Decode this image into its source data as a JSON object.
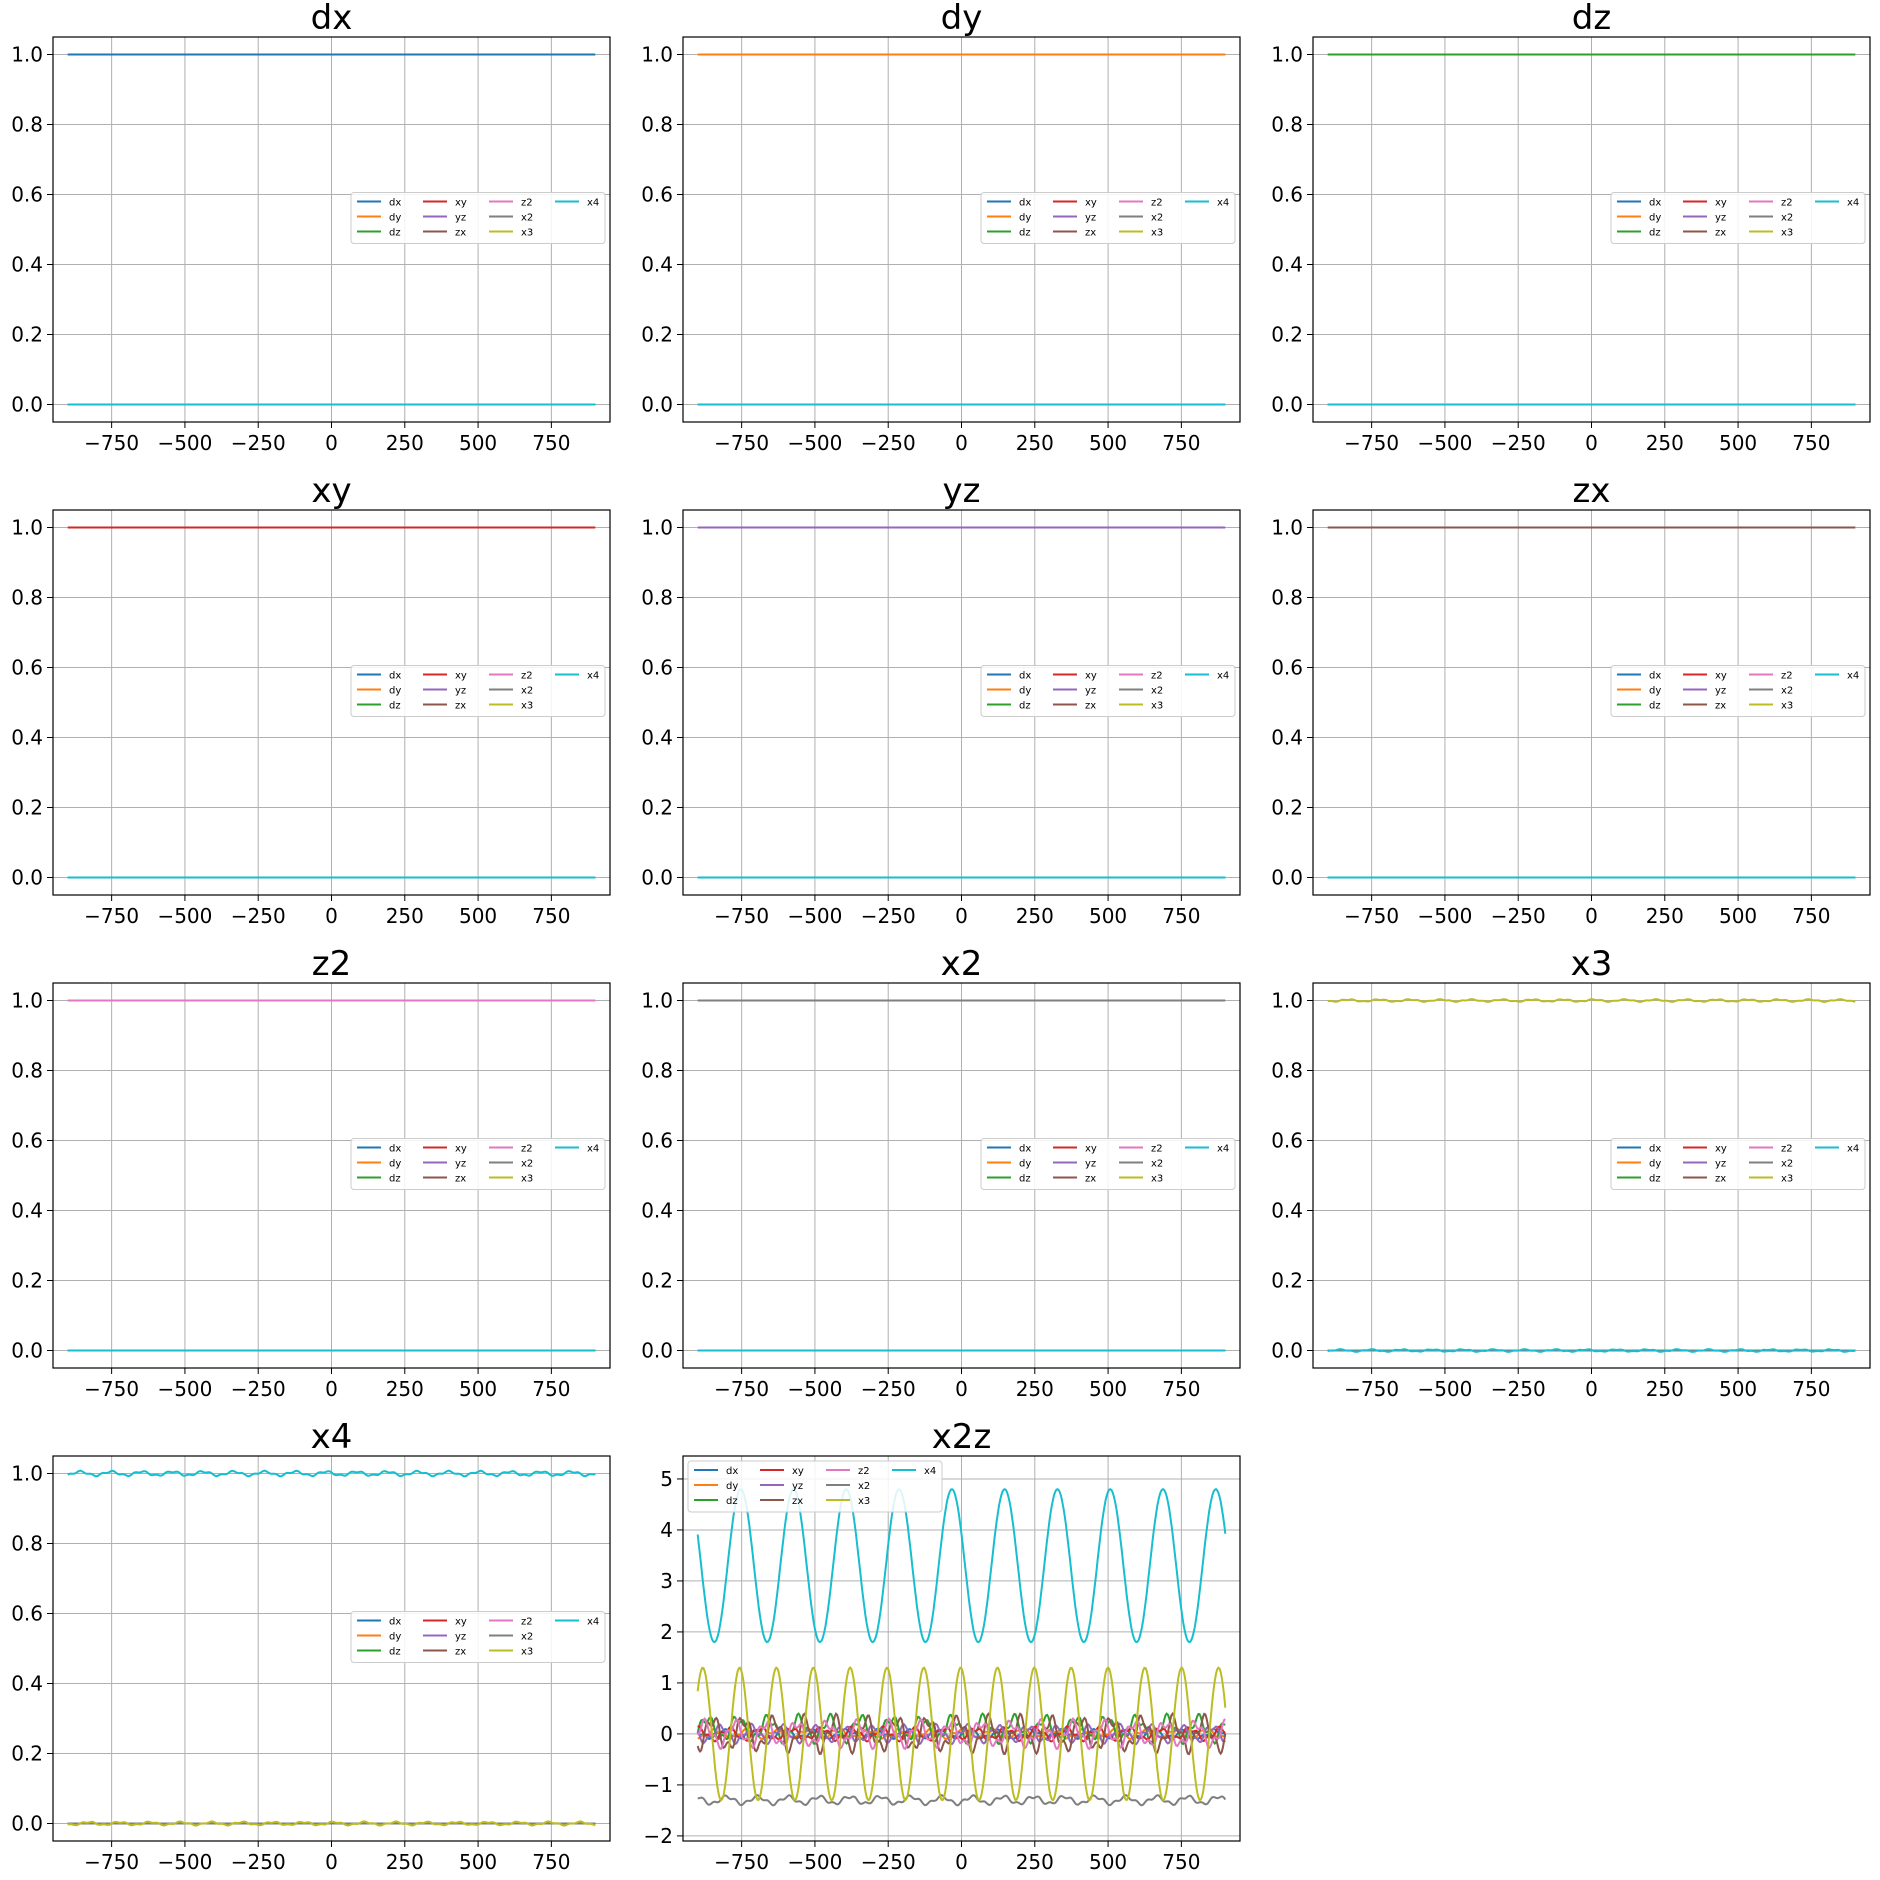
{
  "legend_series": [
    {
      "name": "dx",
      "color": "#1f77b4"
    },
    {
      "name": "dy",
      "color": "#ff7f0e"
    },
    {
      "name": "dz",
      "color": "#2ca02c"
    },
    {
      "name": "xy",
      "color": "#d62728"
    },
    {
      "name": "yz",
      "color": "#9467bd"
    },
    {
      "name": "zx",
      "color": "#8c564b"
    },
    {
      "name": "z2",
      "color": "#e377c2"
    },
    {
      "name": "x2",
      "color": "#7f7f7f"
    },
    {
      "name": "x3",
      "color": "#bcbd22"
    },
    {
      "name": "x4",
      "color": "#17becf"
    }
  ],
  "chart_data": [
    {
      "type": "line",
      "title": "dx",
      "xlim": [
        -950,
        950
      ],
      "ylim": [
        -0.05,
        1.05
      ],
      "xticks": [
        -750,
        -500,
        -250,
        0,
        250,
        500,
        750
      ],
      "yticks": [
        0.0,
        0.2,
        0.4,
        0.6,
        0.8,
        1.0
      ],
      "grid": true,
      "legend": "center-right",
      "x_range": [
        -900,
        900
      ],
      "series": [
        {
          "name": "dx",
          "value": 1.0
        },
        {
          "name": "dy",
          "value": 0.0
        },
        {
          "name": "dz",
          "value": 0.0
        },
        {
          "name": "xy",
          "value": 0.0
        },
        {
          "name": "yz",
          "value": 0.0
        },
        {
          "name": "zx",
          "value": 0.0
        },
        {
          "name": "z2",
          "value": 0.0
        },
        {
          "name": "x2",
          "value": 0.0
        },
        {
          "name": "x3",
          "value": 0.0
        },
        {
          "name": "x4",
          "value": 0.0
        }
      ]
    },
    {
      "type": "line",
      "title": "dy",
      "xlim": [
        -950,
        950
      ],
      "ylim": [
        -0.05,
        1.05
      ],
      "xticks": [
        -750,
        -500,
        -250,
        0,
        250,
        500,
        750
      ],
      "yticks": [
        0.0,
        0.2,
        0.4,
        0.6,
        0.8,
        1.0
      ],
      "grid": true,
      "legend": "center-right",
      "x_range": [
        -900,
        900
      ],
      "series": [
        {
          "name": "dx",
          "value": 0.0
        },
        {
          "name": "dy",
          "value": 1.0
        },
        {
          "name": "dz",
          "value": 0.0
        },
        {
          "name": "xy",
          "value": 0.0
        },
        {
          "name": "yz",
          "value": 0.0
        },
        {
          "name": "zx",
          "value": 0.0
        },
        {
          "name": "z2",
          "value": 0.0
        },
        {
          "name": "x2",
          "value": 0.0
        },
        {
          "name": "x3",
          "value": 0.0
        },
        {
          "name": "x4",
          "value": 0.0
        }
      ]
    },
    {
      "type": "line",
      "title": "dz",
      "xlim": [
        -950,
        950
      ],
      "ylim": [
        -0.05,
        1.05
      ],
      "xticks": [
        -750,
        -500,
        -250,
        0,
        250,
        500,
        750
      ],
      "yticks": [
        0.0,
        0.2,
        0.4,
        0.6,
        0.8,
        1.0
      ],
      "grid": true,
      "legend": "center-right",
      "x_range": [
        -900,
        900
      ],
      "series": [
        {
          "name": "dx",
          "value": 0.0
        },
        {
          "name": "dy",
          "value": 0.0
        },
        {
          "name": "dz",
          "value": 1.0
        },
        {
          "name": "xy",
          "value": 0.0
        },
        {
          "name": "yz",
          "value": 0.0
        },
        {
          "name": "zx",
          "value": 0.0
        },
        {
          "name": "z2",
          "value": 0.0
        },
        {
          "name": "x2",
          "value": 0.0
        },
        {
          "name": "x3",
          "value": 0.0
        },
        {
          "name": "x4",
          "value": 0.0
        }
      ]
    },
    {
      "type": "line",
      "title": "xy",
      "xlim": [
        -950,
        950
      ],
      "ylim": [
        -0.05,
        1.05
      ],
      "xticks": [
        -750,
        -500,
        -250,
        0,
        250,
        500,
        750
      ],
      "yticks": [
        0.0,
        0.2,
        0.4,
        0.6,
        0.8,
        1.0
      ],
      "grid": true,
      "legend": "center-right",
      "x_range": [
        -900,
        900
      ],
      "series": [
        {
          "name": "dx",
          "value": 0.0
        },
        {
          "name": "dy",
          "value": 0.0
        },
        {
          "name": "dz",
          "value": 0.0
        },
        {
          "name": "xy",
          "value": 1.0
        },
        {
          "name": "yz",
          "value": 0.0
        },
        {
          "name": "zx",
          "value": 0.0
        },
        {
          "name": "z2",
          "value": 0.0
        },
        {
          "name": "x2",
          "value": 0.0
        },
        {
          "name": "x3",
          "value": 0.0
        },
        {
          "name": "x4",
          "value": 0.0
        }
      ]
    },
    {
      "type": "line",
      "title": "yz",
      "xlim": [
        -950,
        950
      ],
      "ylim": [
        -0.05,
        1.05
      ],
      "xticks": [
        -750,
        -500,
        -250,
        0,
        250,
        500,
        750
      ],
      "yticks": [
        0.0,
        0.2,
        0.4,
        0.6,
        0.8,
        1.0
      ],
      "grid": true,
      "legend": "center-right",
      "x_range": [
        -900,
        900
      ],
      "series": [
        {
          "name": "dx",
          "value": 0.0
        },
        {
          "name": "dy",
          "value": 0.0
        },
        {
          "name": "dz",
          "value": 0.0
        },
        {
          "name": "xy",
          "value": 0.0
        },
        {
          "name": "yz",
          "value": 1.0
        },
        {
          "name": "zx",
          "value": 0.0
        },
        {
          "name": "z2",
          "value": 0.0
        },
        {
          "name": "x2",
          "value": 0.0
        },
        {
          "name": "x3",
          "value": 0.0
        },
        {
          "name": "x4",
          "value": 0.0
        }
      ]
    },
    {
      "type": "line",
      "title": "zx",
      "xlim": [
        -950,
        950
      ],
      "ylim": [
        -0.05,
        1.05
      ],
      "xticks": [
        -750,
        -500,
        -250,
        0,
        250,
        500,
        750
      ],
      "yticks": [
        0.0,
        0.2,
        0.4,
        0.6,
        0.8,
        1.0
      ],
      "grid": true,
      "legend": "center-right",
      "x_range": [
        -900,
        900
      ],
      "series": [
        {
          "name": "dx",
          "value": 0.0
        },
        {
          "name": "dy",
          "value": 0.0
        },
        {
          "name": "dz",
          "value": 0.0
        },
        {
          "name": "xy",
          "value": 0.0
        },
        {
          "name": "yz",
          "value": 0.0
        },
        {
          "name": "zx",
          "value": 1.0
        },
        {
          "name": "z2",
          "value": 0.0
        },
        {
          "name": "x2",
          "value": 0.0
        },
        {
          "name": "x3",
          "value": 0.0
        },
        {
          "name": "x4",
          "value": 0.0
        }
      ]
    },
    {
      "type": "line",
      "title": "z2",
      "xlim": [
        -950,
        950
      ],
      "ylim": [
        -0.05,
        1.05
      ],
      "xticks": [
        -750,
        -500,
        -250,
        0,
        250,
        500,
        750
      ],
      "yticks": [
        0.0,
        0.2,
        0.4,
        0.6,
        0.8,
        1.0
      ],
      "grid": true,
      "legend": "center-right",
      "x_range": [
        -900,
        900
      ],
      "series": [
        {
          "name": "dx",
          "value": 0.0
        },
        {
          "name": "dy",
          "value": 0.0
        },
        {
          "name": "dz",
          "value": 0.0
        },
        {
          "name": "xy",
          "value": 0.0
        },
        {
          "name": "yz",
          "value": 0.0
        },
        {
          "name": "zx",
          "value": 0.0
        },
        {
          "name": "z2",
          "value": 1.0
        },
        {
          "name": "x2",
          "value": 0.0
        },
        {
          "name": "x3",
          "value": 0.0
        },
        {
          "name": "x4",
          "value": 0.0
        }
      ]
    },
    {
      "type": "line",
      "title": "x2",
      "xlim": [
        -950,
        950
      ],
      "ylim": [
        -0.05,
        1.05
      ],
      "xticks": [
        -750,
        -500,
        -250,
        0,
        250,
        500,
        750
      ],
      "yticks": [
        0.0,
        0.2,
        0.4,
        0.6,
        0.8,
        1.0
      ],
      "grid": true,
      "legend": "center-right",
      "x_range": [
        -900,
        900
      ],
      "series": [
        {
          "name": "dx",
          "value": 0.0
        },
        {
          "name": "dy",
          "value": 0.0
        },
        {
          "name": "dz",
          "value": 0.0
        },
        {
          "name": "xy",
          "value": 0.0
        },
        {
          "name": "yz",
          "value": 0.0
        },
        {
          "name": "zx",
          "value": 0.0
        },
        {
          "name": "z2",
          "value": 0.0
        },
        {
          "name": "x2",
          "value": 1.0
        },
        {
          "name": "x3",
          "value": 0.0
        },
        {
          "name": "x4",
          "value": 0.0
        }
      ]
    },
    {
      "type": "line",
      "title": "x3",
      "xlim": [
        -950,
        950
      ],
      "ylim": [
        -0.05,
        1.05
      ],
      "xticks": [
        -750,
        -500,
        -250,
        0,
        250,
        500,
        750
      ],
      "yticks": [
        0.0,
        0.2,
        0.4,
        0.6,
        0.8,
        1.0
      ],
      "grid": true,
      "legend": "center-right",
      "x_range": [
        -900,
        900
      ],
      "series": [
        {
          "name": "dx",
          "value": 0.0
        },
        {
          "name": "dy",
          "value": 0.0
        },
        {
          "name": "dz",
          "value": 0.0
        },
        {
          "name": "xy",
          "value": 0.0
        },
        {
          "name": "yz",
          "value": 0.0
        },
        {
          "name": "zx",
          "value": 0.0
        },
        {
          "name": "z2",
          "value": 0.0
        },
        {
          "name": "x2",
          "value": 0.0
        },
        {
          "name": "x3",
          "value": 1.0,
          "ripple": 0.004
        },
        {
          "name": "x4",
          "value": 0.0,
          "ripple": 0.004
        }
      ]
    },
    {
      "type": "line",
      "title": "x4",
      "xlim": [
        -950,
        950
      ],
      "ylim": [
        -0.05,
        1.05
      ],
      "xticks": [
        -750,
        -500,
        -250,
        0,
        250,
        500,
        750
      ],
      "yticks": [
        0.0,
        0.2,
        0.4,
        0.6,
        0.8,
        1.0
      ],
      "grid": true,
      "legend": "center-right",
      "x_range": [
        -900,
        900
      ],
      "series": [
        {
          "name": "dx",
          "value": 0.0
        },
        {
          "name": "dy",
          "value": 0.0
        },
        {
          "name": "dz",
          "value": 0.0
        },
        {
          "name": "xy",
          "value": 0.0
        },
        {
          "name": "yz",
          "value": 0.0
        },
        {
          "name": "zx",
          "value": 0.0
        },
        {
          "name": "z2",
          "value": 0.0
        },
        {
          "name": "x2",
          "value": 0.0
        },
        {
          "name": "x3",
          "value": 0.0,
          "ripple": 0.006
        },
        {
          "name": "x4",
          "value": 1.0,
          "ripple": 0.008
        }
      ]
    },
    {
      "type": "line",
      "title": "x2z",
      "xlim": [
        -950,
        950
      ],
      "ylim": [
        -2.1,
        5.45
      ],
      "xticks": [
        -750,
        -500,
        -250,
        0,
        250,
        500,
        750
      ],
      "yticks": [
        -2,
        -1,
        0,
        1,
        2,
        3,
        4,
        5
      ],
      "grid": true,
      "legend": "top-left",
      "x_range": [
        -900,
        900
      ],
      "series": [
        {
          "name": "dx",
          "value": 0.0,
          "ripple": 0.1
        },
        {
          "name": "dy",
          "value": 0.0,
          "ripple": 0.1
        },
        {
          "name": "dz",
          "value": 0.1,
          "ripple": 0.3
        },
        {
          "name": "xy",
          "value": 0.0,
          "ripple": 0.15
        },
        {
          "name": "yz",
          "value": 0.0,
          "ripple": 0.2
        },
        {
          "name": "zx",
          "value": 0.0,
          "ripple": 0.4
        },
        {
          "name": "z2",
          "value": 0.0,
          "ripple": 0.3
        },
        {
          "name": "x2",
          "value": -1.3,
          "ripple": 0.1
        },
        {
          "name": "x3",
          "value": 0.0,
          "amplitude": 1.3
        },
        {
          "name": "x4",
          "value": 3.3,
          "amplitude": 1.5
        }
      ]
    }
  ]
}
